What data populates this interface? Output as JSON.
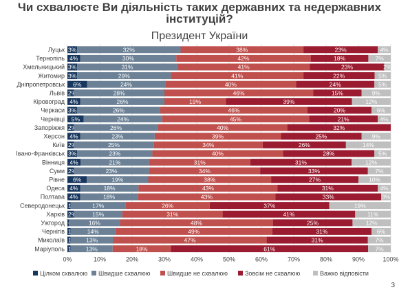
{
  "slide": {
    "title_lines": [
      "Чи схвалюєте Ви діяльність таких державних та недержавних",
      "інституцій?"
    ],
    "page_number": "3"
  },
  "chart_data": {
    "type": "bar",
    "orientation": "horizontal",
    "stacked": true,
    "title": "Президент України",
    "categories": [
      "Луцьк",
      "Тернопіль",
      "Хмельницький",
      "Житомир",
      "Дніпропетровськ",
      "Львів",
      "Кіровоград",
      "Черкаси",
      "Чернівці",
      "Запоріжжя",
      "Херсон",
      "Київ",
      "Івано-Франківськ",
      "Вінниця",
      "Суми",
      "Рівне",
      "Одеса",
      "Полтава",
      "Северодонецьк",
      "Харків",
      "Ужгород",
      "Чернігів",
      "Миколаїв",
      "Маріуполь"
    ],
    "series": [
      {
        "name": "Цілком схвалюю",
        "color": "#17375e",
        "values": [
          3,
          4,
          3,
          3,
          6,
          2,
          4,
          3,
          5,
          2,
          4,
          2,
          3,
          4,
          2,
          6,
          4,
          4,
          1,
          2,
          0.5,
          1,
          1,
          1
        ],
        "labels": [
          "3%",
          "4%",
          "3%",
          "3%",
          "6%",
          "2%",
          "4%",
          "3%",
          "5%",
          "2%",
          "4%",
          "2%",
          "3%",
          "4%",
          "2%",
          "6%",
          "4%",
          "4%",
          "1%",
          "2%",
          "<1%",
          "1%",
          "1%",
          "1%"
        ]
      },
      {
        "name": "Швидше схвалюю",
        "color": "#6c8196",
        "values": [
          32,
          30,
          31,
          29,
          24,
          28,
          26,
          26,
          24,
          26,
          23,
          25,
          23,
          21,
          23,
          19,
          18,
          18,
          17,
          15,
          16,
          14,
          13,
          13
        ],
        "labels": [
          "32%",
          "30%",
          "31%",
          "29%",
          "24%",
          "28%",
          "26%",
          "26%",
          "24%",
          "26%",
          "23%",
          "25%",
          "23%",
          "21%",
          "23%",
          "19%",
          "18%",
          "18%",
          "17%",
          "15%",
          "16%",
          "14%",
          "13%",
          "13%"
        ]
      },
      {
        "name": "Швидше не схвалюю",
        "color": "#c0504d",
        "values": [
          38,
          42,
          41,
          41,
          40,
          46,
          19,
          46,
          45,
          40,
          39,
          34,
          40,
          31,
          34,
          38,
          43,
          43,
          26,
          31,
          48,
          49,
          47,
          18
        ],
        "labels": [
          "38%",
          "42%",
          "41%",
          "41%",
          "40%",
          "46%",
          "19%",
          "46%",
          "45%",
          "40%",
          "39%",
          "34%",
          "40%",
          "31%",
          "34%",
          "38%",
          "43%",
          "43%",
          "26%",
          "31%",
          "48%",
          "49%",
          "47%",
          "18%"
        ]
      },
      {
        "name": "Зовсім не схвалюю",
        "color": "#9b1c31",
        "values": [
          23,
          18,
          23,
          22,
          24,
          15,
          39,
          20,
          21,
          32,
          25,
          26,
          28,
          31,
          33,
          27,
          31,
          33,
          37,
          41,
          25,
          31,
          31,
          61
        ],
        "labels": [
          "23%",
          "18%",
          "23%",
          "22%",
          "24%",
          "15%",
          "39%",
          "20%",
          "21%",
          "32%",
          "25%",
          "26%",
          "28%",
          "31%",
          "33%",
          "27%",
          "31%",
          "33%",
          "37%",
          "41%",
          "25%",
          "31%",
          "31%",
          "61%"
        ]
      },
      {
        "name": "Важко відповісти",
        "color": "#bfbfbf",
        "values": [
          4,
          7,
          2,
          5,
          5,
          9,
          12,
          6,
          4,
          0,
          9,
          14,
          5,
          12,
          7,
          10,
          4,
          3,
          19,
          11,
          12,
          6,
          7,
          7
        ],
        "labels": [
          "4%",
          "7%",
          "2%",
          "5%",
          "5%",
          "9%",
          "12%",
          "6%",
          "4%",
          "",
          "9%",
          "14%",
          "5%",
          "12%",
          "7%",
          "10%",
          "4%",
          "3%",
          "19%",
          "11%",
          "12%",
          "6%",
          "7%",
          "7%"
        ]
      }
    ],
    "xlim": [
      0,
      100
    ],
    "xticks": [
      "0%",
      "10%",
      "20%",
      "30%",
      "40%",
      "50%",
      "60%",
      "70%",
      "80%",
      "90%",
      "100%"
    ],
    "grid": true,
    "legend_position": "bottom"
  }
}
